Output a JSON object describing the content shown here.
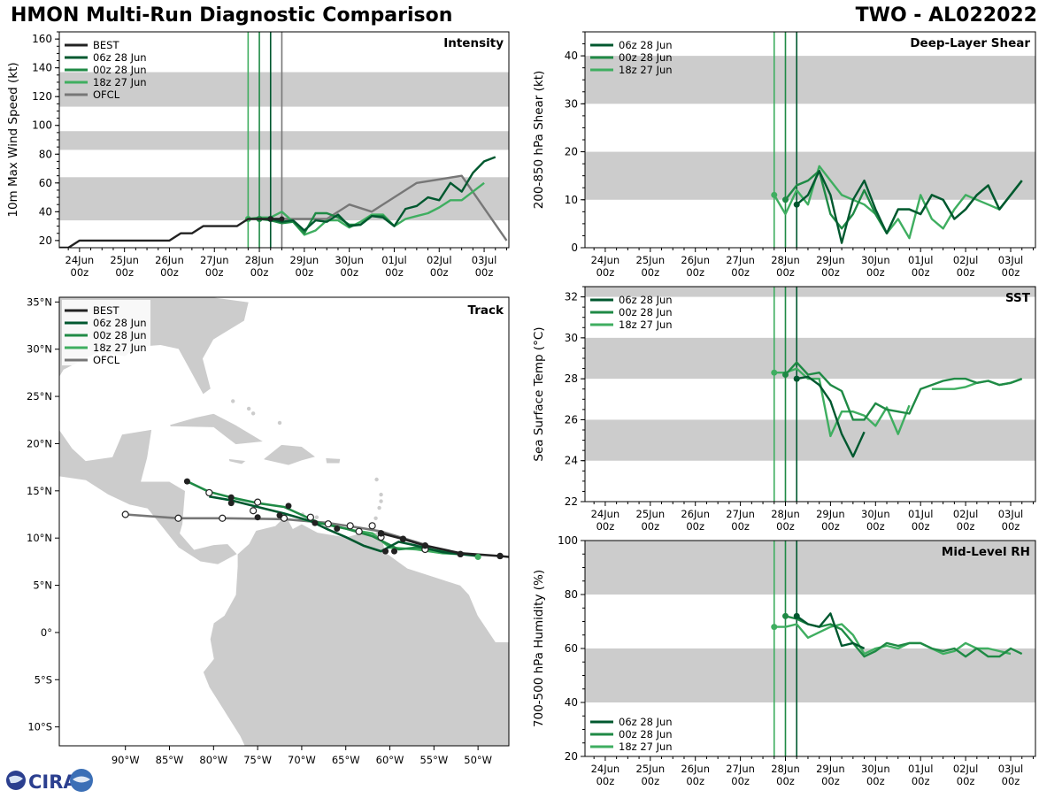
{
  "header": {
    "title": "HMON Multi-Run Diagnostic Comparison",
    "storm": "TWO - AL022022"
  },
  "logo": {
    "text": "CIRA"
  },
  "colors": {
    "best": "#222222",
    "run06": "#00582f",
    "run00": "#1f8a45",
    "run18": "#3fae60",
    "ofcl": "#777777",
    "band": "#cccccc",
    "land": "#cccccc"
  },
  "time_axis": {
    "ticks": [
      "24Jun 00z",
      "25Jun 00z",
      "26Jun 00z",
      "27Jun 00z",
      "28Jun 00z",
      "29Jun 00z",
      "30Jun 00z",
      "01Jul 00z",
      "02Jul 00z",
      "03Jul 00z"
    ],
    "range_days": [
      -0.45,
      9.55
    ],
    "init_lines": [
      {
        "run": "run18",
        "day": 3.75
      },
      {
        "run": "run00",
        "day": 4.0
      },
      {
        "run": "run06",
        "day": 4.25
      }
    ]
  },
  "chart_data": [
    {
      "id": "intensity",
      "type": "line",
      "title": "Intensity",
      "ylabel": "10m Max Wind Speed (kt)",
      "ylim": [
        15,
        165
      ],
      "yticks": [
        20,
        40,
        60,
        80,
        100,
        120,
        140,
        160
      ],
      "bands": [
        [
          34,
          64
        ],
        [
          83,
          96
        ],
        [
          113,
          137
        ]
      ],
      "ofcl_line_day": 4.5,
      "legend": [
        "BEST",
        "06z 28 Jun",
        "00z 28 Jun",
        "18z 27 Jun",
        "OFCL"
      ],
      "series": [
        {
          "name": "BEST",
          "key": "best",
          "x": [
            -0.5,
            -0.25,
            0,
            0.25,
            0.5,
            0.75,
            1,
            1.25,
            1.5,
            1.75,
            2,
            2.25,
            2.5,
            2.75,
            3,
            3.25,
            3.5,
            3.75,
            4,
            4.25,
            4.5
          ],
          "y": [
            15,
            15,
            20,
            20,
            20,
            20,
            20,
            20,
            20,
            20,
            20,
            25,
            25,
            30,
            30,
            30,
            30,
            35,
            35,
            35,
            35
          ]
        },
        {
          "name": "06z 28 Jun",
          "key": "run06",
          "x": [
            4.25,
            4.5,
            4.75,
            5,
            5.25,
            5.5,
            5.75,
            6,
            6.25,
            6.5,
            6.75,
            7,
            7.25,
            7.5,
            7.75,
            8,
            8.25,
            8.5,
            8.75,
            9,
            9.25
          ],
          "y": [
            35,
            33,
            34,
            27,
            34,
            33,
            38,
            30,
            31,
            37,
            36,
            30,
            42,
            44,
            50,
            48,
            60,
            54,
            67,
            75,
            78
          ]
        },
        {
          "name": "00z 28 Jun",
          "key": "run00",
          "x": [
            4,
            4.25,
            4.5,
            4.75,
            5,
            5.25,
            5.5,
            5.75,
            6,
            6.25,
            6.5,
            6.75,
            7
          ],
          "y": [
            35,
            34,
            32,
            33,
            25,
            39,
            39,
            36,
            31,
            31,
            37,
            37,
            30
          ]
        },
        {
          "name": "18z 27 Jun",
          "key": "run18",
          "x": [
            3.75,
            4,
            4.25,
            4.5,
            4.75,
            5,
            5.25,
            5.5,
            5.75,
            6,
            6.25,
            6.5,
            6.75,
            7,
            7.25,
            7.5,
            7.75,
            8,
            8.25,
            8.5,
            8.75,
            9
          ],
          "y": [
            35,
            36,
            36,
            40,
            33,
            24,
            27,
            34,
            34,
            29,
            33,
            38,
            38,
            30,
            35,
            37,
            39,
            43,
            48,
            48,
            54,
            60
          ]
        },
        {
          "name": "OFCL",
          "key": "ofcl",
          "x": [
            4.25,
            4.5,
            5,
            5.5,
            6,
            6.5,
            7.5,
            8.5,
            9.5
          ],
          "y": [
            35,
            35,
            35,
            35,
            45,
            40,
            60,
            65,
            20
          ]
        }
      ]
    },
    {
      "id": "shear",
      "type": "line",
      "title": "Deep-Layer Shear",
      "ylabel": "200-850 hPa Shear (kt)",
      "ylim": [
        0,
        45
      ],
      "yticks": [
        0,
        10,
        20,
        30,
        40
      ],
      "bands": [
        [
          10,
          20
        ],
        [
          30,
          40
        ]
      ],
      "legend": [
        "06z 28 Jun",
        "00z 28 Jun",
        "18z 27 Jun"
      ],
      "series": [
        {
          "name": "06z 28 Jun",
          "key": "run06",
          "x": [
            4.25,
            4.5,
            4.75,
            5,
            5.25,
            5.5,
            5.75,
            6,
            6.25,
            6.5,
            6.75,
            7,
            7.25,
            7.5,
            7.75,
            8,
            8.25,
            8.5,
            8.75,
            9,
            9.25
          ],
          "y": [
            9,
            11,
            16,
            11,
            1,
            10,
            14,
            8,
            3,
            8,
            8,
            7,
            11,
            10,
            6,
            8,
            11,
            13,
            8,
            11,
            14
          ]
        },
        {
          "name": "00z 28 Jun",
          "key": "run00",
          "x": [
            4,
            4.25,
            4.5,
            4.75,
            5,
            5.25,
            5.5,
            5.75,
            6,
            6.25,
            6.5,
            6.75,
            7,
            7.25,
            7.5,
            7.75,
            8,
            8.25,
            8.5,
            8.75,
            9,
            9.25
          ],
          "y": [
            10,
            13,
            14,
            16,
            7,
            4,
            7,
            12,
            7,
            3,
            8,
            8,
            7,
            11,
            10,
            6,
            8,
            11,
            13,
            8,
            11,
            14
          ]
        },
        {
          "name": "18z 27 Jun",
          "key": "run18",
          "x": [
            3.75,
            4,
            4.25,
            4.5,
            4.75,
            5,
            5.25,
            5.5,
            5.75,
            6,
            6.25,
            6.5,
            6.75,
            7,
            7.25,
            7.5,
            7.75,
            8,
            8.25,
            8.5,
            8.75,
            9,
            9.25
          ],
          "y": [
            11,
            7,
            12,
            9,
            17,
            14,
            11,
            10,
            9,
            7,
            3,
            6,
            2,
            11,
            6,
            4,
            8,
            11,
            10,
            9,
            8,
            11,
            14
          ]
        }
      ]
    },
    {
      "id": "sst",
      "type": "line",
      "title": "SST",
      "ylabel": "Sea Surface Temp (°C)",
      "ylim": [
        22,
        32.5
      ],
      "yticks": [
        22,
        24,
        26,
        28,
        30,
        32
      ],
      "bands": [
        [
          24,
          26
        ],
        [
          28,
          30
        ],
        [
          32,
          34
        ]
      ],
      "legend": [
        "06z 28 Jun",
        "00z 28 Jun",
        "18z 27 Jun"
      ],
      "series": [
        {
          "name": "06z 28 Jun",
          "key": "run06",
          "x": [
            4.25,
            4.5,
            4.75,
            5,
            5.25,
            5.5,
            5.75
          ],
          "y": [
            28.0,
            28.1,
            27.7,
            26.9,
            25.3,
            24.2,
            25.4
          ]
        },
        {
          "name": "00z 28 Jun",
          "key": "run00",
          "x": [
            4,
            4.25,
            4.5,
            4.75,
            5,
            5.25,
            5.5,
            5.75,
            6,
            6.25,
            6.5,
            6.75,
            7,
            7.25,
            7.5,
            7.75,
            8,
            8.25,
            8.5,
            8.75,
            9,
            9.25
          ],
          "y": [
            28.2,
            28.8,
            28.2,
            28.3,
            27.7,
            27.4,
            26.0,
            26.0,
            26.8,
            26.5,
            26.4,
            26.3,
            27.5,
            27.7,
            27.9,
            28.0,
            28.0,
            27.8,
            27.9,
            27.7,
            27.8,
            28.0
          ]
        },
        {
          "name": "18z 27 Jun",
          "key": "run18",
          "x": [
            3.75,
            4,
            4.25,
            4.5,
            4.75,
            5,
            5.25,
            5.5,
            5.75,
            6,
            6.25,
            6.5,
            6.75,
            7,
            7.25,
            7.5,
            7.75,
            8,
            8.25,
            8.5,
            8.75,
            9,
            9.25
          ],
          "y": [
            28.3,
            28.3,
            28.5,
            28.0,
            28.0,
            25.2,
            26.4,
            26.4,
            26.2,
            25.7,
            26.6,
            25.3,
            26.7,
            null,
            27.5,
            27.5,
            27.5,
            27.6,
            27.8,
            27.9,
            27.7,
            27.8,
            28.0
          ]
        }
      ]
    },
    {
      "id": "rh",
      "type": "line",
      "title": "Mid-Level RH",
      "ylabel": "700-500 hPa Humidity (%)",
      "ylim": [
        20,
        100
      ],
      "yticks": [
        20,
        40,
        60,
        80,
        100
      ],
      "bands": [
        [
          40,
          60
        ],
        [
          80,
          100
        ]
      ],
      "legend": [
        "06z 28 Jun",
        "00z 28 Jun",
        "18z 27 Jun"
      ],
      "series": [
        {
          "name": "06z 28 Jun",
          "key": "run06",
          "x": [
            4.25,
            4.5,
            4.75,
            5,
            5.25,
            5.5,
            5.75
          ],
          "y": [
            72,
            69,
            68,
            73,
            61,
            62,
            60
          ]
        },
        {
          "name": "00z 28 Jun",
          "key": "run00",
          "x": [
            4,
            4.25,
            4.5,
            4.75,
            5,
            5.25,
            5.5,
            5.75,
            6,
            6.25,
            6.5,
            6.75,
            7,
            7.25,
            7.5,
            7.75,
            8,
            8.25,
            8.5,
            8.75,
            9,
            9.25
          ],
          "y": [
            72,
            71,
            69,
            68,
            69,
            67,
            62,
            57,
            59,
            62,
            61,
            62,
            62,
            60,
            59,
            60,
            57,
            60,
            57,
            57,
            60,
            58
          ]
        },
        {
          "name": "18z 27 Jun",
          "key": "run18",
          "x": [
            3.75,
            4,
            4.25,
            4.5,
            4.75,
            5,
            5.25,
            5.5,
            5.75,
            6,
            6.25,
            6.5,
            6.75,
            7,
            7.25,
            7.5,
            7.75,
            8,
            8.25,
            8.5,
            8.75,
            9
          ],
          "y": [
            68,
            68,
            69,
            64,
            66,
            68,
            69,
            65,
            58,
            60,
            61,
            60,
            62,
            62,
            60,
            58,
            59,
            62,
            60,
            60,
            59,
            58
          ]
        }
      ]
    },
    {
      "id": "track",
      "type": "scatter",
      "title": "Track",
      "lon_range": [
        -97.5,
        -46.5
      ],
      "lat_range": [
        -12,
        35.5
      ],
      "lon_ticks": [
        -90,
        -85,
        -80,
        -75,
        -70,
        -65,
        -60,
        -55,
        -50
      ],
      "lon_labels": [
        "90°W",
        "85°W",
        "80°W",
        "75°W",
        "70°W",
        "65°W",
        "60°W",
        "55°W",
        "50°W"
      ],
      "lat_ticks": [
        -10,
        -5,
        0,
        5,
        10,
        15,
        20,
        25,
        30,
        35
      ],
      "lat_labels": [
        "10°S",
        "5°S",
        "0°",
        "5°N",
        "10°N",
        "15°N",
        "20°N",
        "25°N",
        "30°N",
        "35°N"
      ],
      "legend": [
        "BEST",
        "06z 28 Jun",
        "00z 28 Jun",
        "18z 27 Jun",
        "OFCL"
      ],
      "series": [
        {
          "name": "BEST",
          "key": "best",
          "lon": [
            -46.5,
            -47.5,
            -52,
            -56,
            -58.5,
            -61
          ],
          "lat": [
            8,
            8.1,
            8.4,
            9.2,
            9.9,
            10.5
          ]
        },
        {
          "name": "06z 28 Jun",
          "key": "run06",
          "lon": [
            -50,
            -54,
            -57,
            -59,
            -61,
            -63,
            -65,
            -67,
            -69,
            -72,
            -75,
            -78,
            -80.5
          ],
          "lat": [
            8.1,
            8.5,
            9.2,
            9.6,
            8.6,
            9.2,
            10.1,
            10.9,
            11.8,
            12.6,
            13.3,
            14.0,
            14.4
          ]
        },
        {
          "name": "00z 28 Jun",
          "key": "run00",
          "lon": [
            -50,
            -54,
            -57,
            -59,
            -62,
            -65,
            -68,
            -72,
            -75,
            -78,
            -80.5,
            -83
          ],
          "lat": [
            8.2,
            8.6,
            9.0,
            8.8,
            10.2,
            11.0,
            11.6,
            13.3,
            13.7,
            14.3,
            14.9,
            16.0
          ]
        },
        {
          "name": "18z 27 Jun",
          "key": "run18",
          "lon": [
            -50,
            -54,
            -57,
            -60,
            -62,
            -64,
            -66,
            -68,
            -70
          ],
          "lat": [
            8.2,
            8.4,
            8.8,
            9.0,
            10.5,
            10.8,
            11.2,
            11.6,
            12.0
          ]
        },
        {
          "name": "OFCL",
          "key": "ofcl",
          "lon": [
            -56,
            -58.5,
            -61,
            -63.5,
            -67,
            -72,
            -79,
            -84,
            -90
          ],
          "lat": [
            9.3,
            10.0,
            10.7,
            11.1,
            11.6,
            12.0,
            12.1,
            12.1,
            12.5
          ]
        }
      ],
      "markers": {
        "best_filled": [
          [
            -47.5,
            8.1
          ],
          [
            -52,
            8.3
          ],
          [
            -56,
            9.2
          ],
          [
            -58.5,
            9.9
          ],
          [
            -61,
            10.5
          ]
        ],
        "ofcl_open": [
          [
            -56,
            8.8
          ],
          [
            -61,
            10.1
          ],
          [
            -63.5,
            10.7
          ],
          [
            -67,
            11.5
          ],
          [
            -72,
            12.1
          ],
          [
            -75.5,
            12.9
          ],
          [
            -79,
            12.1
          ],
          [
            -84,
            12.1
          ],
          [
            -90,
            12.5
          ],
          [
            -62,
            11.3
          ],
          [
            -64.5,
            11.3
          ],
          [
            -69,
            12.2
          ],
          [
            -75,
            13.8
          ],
          [
            -80.5,
            14.8
          ]
        ],
        "run_filled": [
          [
            -50,
            8.0
          ],
          [
            -59.5,
            8.6
          ],
          [
            -66,
            11.0
          ],
          [
            -68.5,
            11.6
          ],
          [
            -72.5,
            12.4
          ],
          [
            -75,
            12.2
          ],
          [
            -78,
            13.7
          ],
          [
            -78,
            14.3
          ],
          [
            -71.5,
            13.4
          ],
          [
            -83,
            16.0
          ],
          [
            -60.5,
            8.6
          ],
          [
            -61,
            10.5
          ]
        ]
      }
    }
  ]
}
